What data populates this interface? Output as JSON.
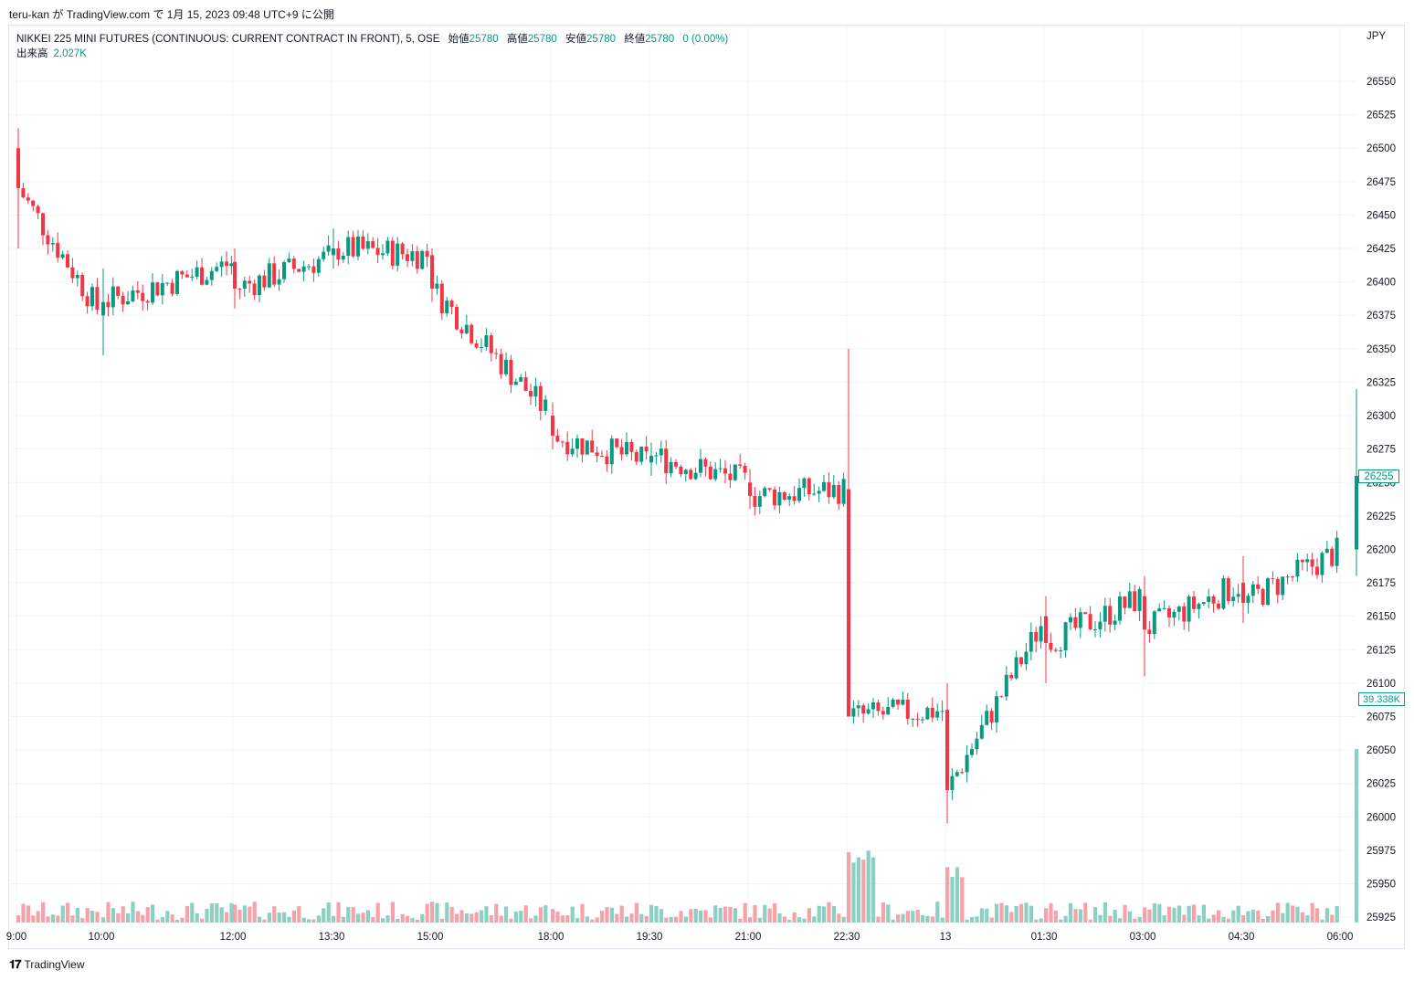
{
  "header": {
    "byline": "teru-kan が TradingView.com で 1月 15, 2023 09:48 UTC+9 に公開"
  },
  "legend": {
    "symbol": "NIKKEI 225 MINI FUTURES (CONTINUOUS: CURRENT CONTRACT IN FRONT), 5, OSE",
    "open_label": "始値",
    "open": "25780",
    "high_label": "高値",
    "high": "25780",
    "low_label": "安値",
    "low": "25780",
    "close_label": "終値",
    "close": "25780",
    "change": "0 (0.00%)",
    "volume_label": "出来高",
    "volume": "2.027K"
  },
  "price_axis": {
    "currency": "JPY",
    "last_price_tag": "26255",
    "volume_tag": "39.338K"
  },
  "footer": {
    "brand": "TradingView"
  },
  "colors": {
    "up": "#089981",
    "down": "#f23645",
    "up_volume": "#8bd0c3",
    "down_volume": "#f5a3a9",
    "grid": "#f0f3fa"
  },
  "chart_data": {
    "type": "candlestick",
    "interval": "5",
    "exchange": "OSE",
    "y_ticks": [
      26550,
      26525,
      26500,
      26475,
      26450,
      26425,
      26400,
      26375,
      26350,
      26325,
      26300,
      26275,
      26250,
      26225,
      26200,
      26175,
      26150,
      26125,
      26100,
      26075,
      26050,
      26025,
      26000,
      25975,
      25950,
      25925
    ],
    "x_ticks": [
      "9:00",
      "10:00",
      "12:00",
      "13:30",
      "15:00",
      "18:00",
      "19:30",
      "21:00",
      "22:30",
      "13",
      "01:30",
      "03:00",
      "04:30",
      "06:00"
    ],
    "grid": true,
    "ohlc_key_points": [
      {
        "time": "9:00",
        "open": 26500,
        "high": 26515,
        "low": 26425,
        "close": 26470
      },
      {
        "time": "10:00",
        "open": 26375,
        "high": 26410,
        "low": 26345,
        "close": 26385
      },
      {
        "time": "12:00",
        "open": 26415,
        "high": 26425,
        "low": 26380,
        "close": 26395
      },
      {
        "time": "13:30",
        "open": 26420,
        "high": 26440,
        "low": 26410,
        "close": 26425
      },
      {
        "time": "15:00",
        "open": 26420,
        "high": 26425,
        "low": 26385,
        "close": 26395
      },
      {
        "time": "18:00",
        "open": 26300,
        "high": 26310,
        "low": 26275,
        "close": 26285
      },
      {
        "time": "19:30",
        "open": 26265,
        "high": 26280,
        "low": 26255,
        "close": 26270
      },
      {
        "time": "21:00",
        "open": 26250,
        "high": 26260,
        "low": 26230,
        "close": 26240
      },
      {
        "time": "22:30",
        "open": 26245,
        "high": 26350,
        "low": 26075,
        "close": 26075
      },
      {
        "time": "13",
        "open": 26080,
        "high": 26100,
        "low": 25995,
        "close": 26020
      },
      {
        "time": "01:30",
        "open": 26150,
        "high": 26165,
        "low": 26100,
        "close": 26130
      },
      {
        "time": "03:00",
        "open": 26165,
        "high": 26180,
        "low": 26105,
        "close": 26140
      },
      {
        "time": "04:30",
        "open": 26175,
        "high": 26195,
        "low": 26145,
        "close": 26160
      },
      {
        "time": "06:00",
        "open": 26200,
        "high": 26320,
        "low": 26180,
        "close": 26255
      }
    ],
    "last_close": 26255,
    "last_volume": "39.338K"
  }
}
